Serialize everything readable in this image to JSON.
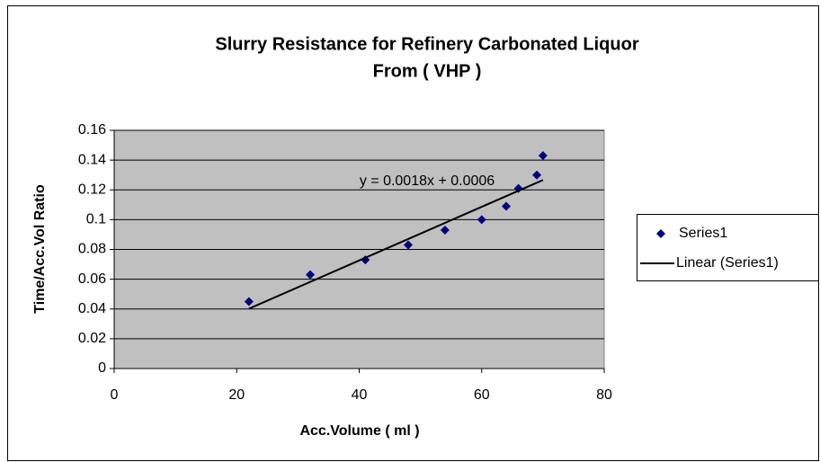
{
  "chart_data": {
    "type": "scatter",
    "title": [
      "Slurry Resistance for Refinery Carbonated Liquor",
      "From ( VHP )"
    ],
    "x_label": "Acc.Volume ( ml )",
    "y_label": "Time/Acc.Vol  Ratio",
    "series": [
      {
        "name": "Series1",
        "color": "#000080",
        "x": [
          22,
          32,
          41,
          48,
          54,
          60,
          64,
          66,
          69,
          70
        ],
        "values": [
          0.045,
          0.063,
          0.073,
          0.083,
          0.093,
          0.1,
          0.109,
          0.121,
          0.13,
          0.143
        ]
      }
    ],
    "trendline": {
      "name": "Linear (Series1)",
      "color": "#000000",
      "label": "y = 0.0018x + 0.0006",
      "slope": 0.0018,
      "intercept": 0.0006
    },
    "xlim": [
      0,
      80
    ],
    "xticks": [
      0,
      20,
      40,
      60,
      80
    ],
    "ylim": [
      0,
      0.16
    ],
    "yticks": [
      0,
      0.02,
      0.04,
      0.06,
      0.08,
      0.1,
      0.12,
      0.14,
      0.16
    ],
    "grid": true,
    "plot_background": "#c0c0c0",
    "legend": "right"
  }
}
